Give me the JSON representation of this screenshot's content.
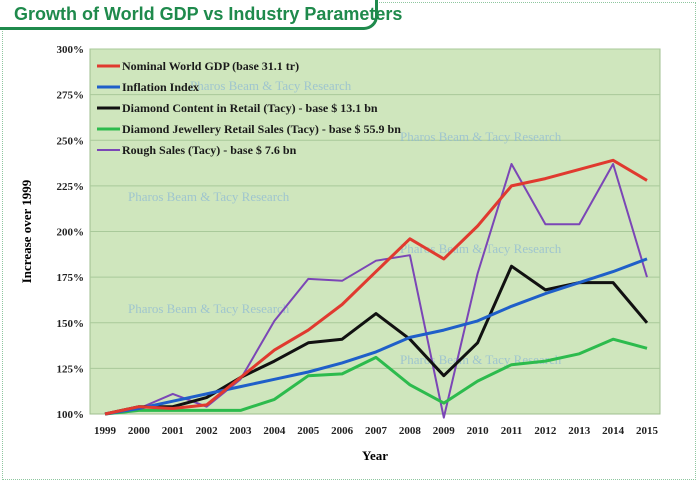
{
  "header": {
    "title": "Growth of World GDP vs Industry Parameters"
  },
  "colors": {
    "plot_background": "#cfe6bd",
    "gridline": "#a9c99a",
    "title_accent": "#1f8a4c",
    "watermark": "#8fb9d4"
  },
  "watermark_text": "Pharos Beam & Tacy Research",
  "chart_data": {
    "type": "line",
    "xlabel": "Year",
    "ylabel": "Increase over 1999",
    "ylim": [
      100,
      300
    ],
    "yticks": [
      100,
      125,
      150,
      175,
      200,
      225,
      250,
      275,
      300
    ],
    "ytick_labels": [
      "100%",
      "125%",
      "150%",
      "175%",
      "200%",
      "225%",
      "250%",
      "275%",
      "300%"
    ],
    "x": [
      "1999",
      "2000",
      "2001",
      "2002",
      "2003",
      "2004",
      "2005",
      "2006",
      "2007",
      "2008",
      "2009",
      "2010",
      "2011",
      "2012",
      "2013",
      "2014",
      "2015"
    ],
    "grid": true,
    "legend_position": "top-left",
    "series": [
      {
        "name": "Nominal World GDP (base 31.1 tr)",
        "color": "#e03a2f",
        "values": [
          100,
          104,
          103,
          105,
          120,
          135,
          146,
          160,
          178,
          196,
          185,
          203,
          225,
          229,
          234,
          239,
          228
        ]
      },
      {
        "name": "Inflation Index",
        "color": "#1f5fc9",
        "values": [
          100,
          103,
          107,
          111,
          115,
          119,
          123,
          128,
          134,
          142,
          146,
          151,
          159,
          166,
          172,
          178,
          185
        ]
      },
      {
        "name": "Diamond Content in Retail (Tacy) - base $ 13.1 bn",
        "color": "#111111",
        "values": [
          100,
          104,
          104,
          109,
          120,
          129,
          139,
          141,
          155,
          141,
          121,
          139,
          181,
          168,
          172,
          172,
          150
        ]
      },
      {
        "name": "Diamond Jewellery Retail Sales (Tacy) - base $ 55.9 bn",
        "color": "#2dbb4d",
        "values": [
          100,
          102,
          102,
          102,
          102,
          108,
          121,
          122,
          131,
          116,
          106,
          118,
          127,
          129,
          133,
          141,
          136
        ]
      },
      {
        "name": "Rough Sales (Tacy) - base $ 7.6 bn",
        "color": "#7b46b6",
        "values": [
          100,
          103,
          111,
          104,
          119,
          151,
          174,
          173,
          184,
          187,
          98,
          177,
          237,
          204,
          204,
          237,
          175
        ]
      }
    ]
  }
}
